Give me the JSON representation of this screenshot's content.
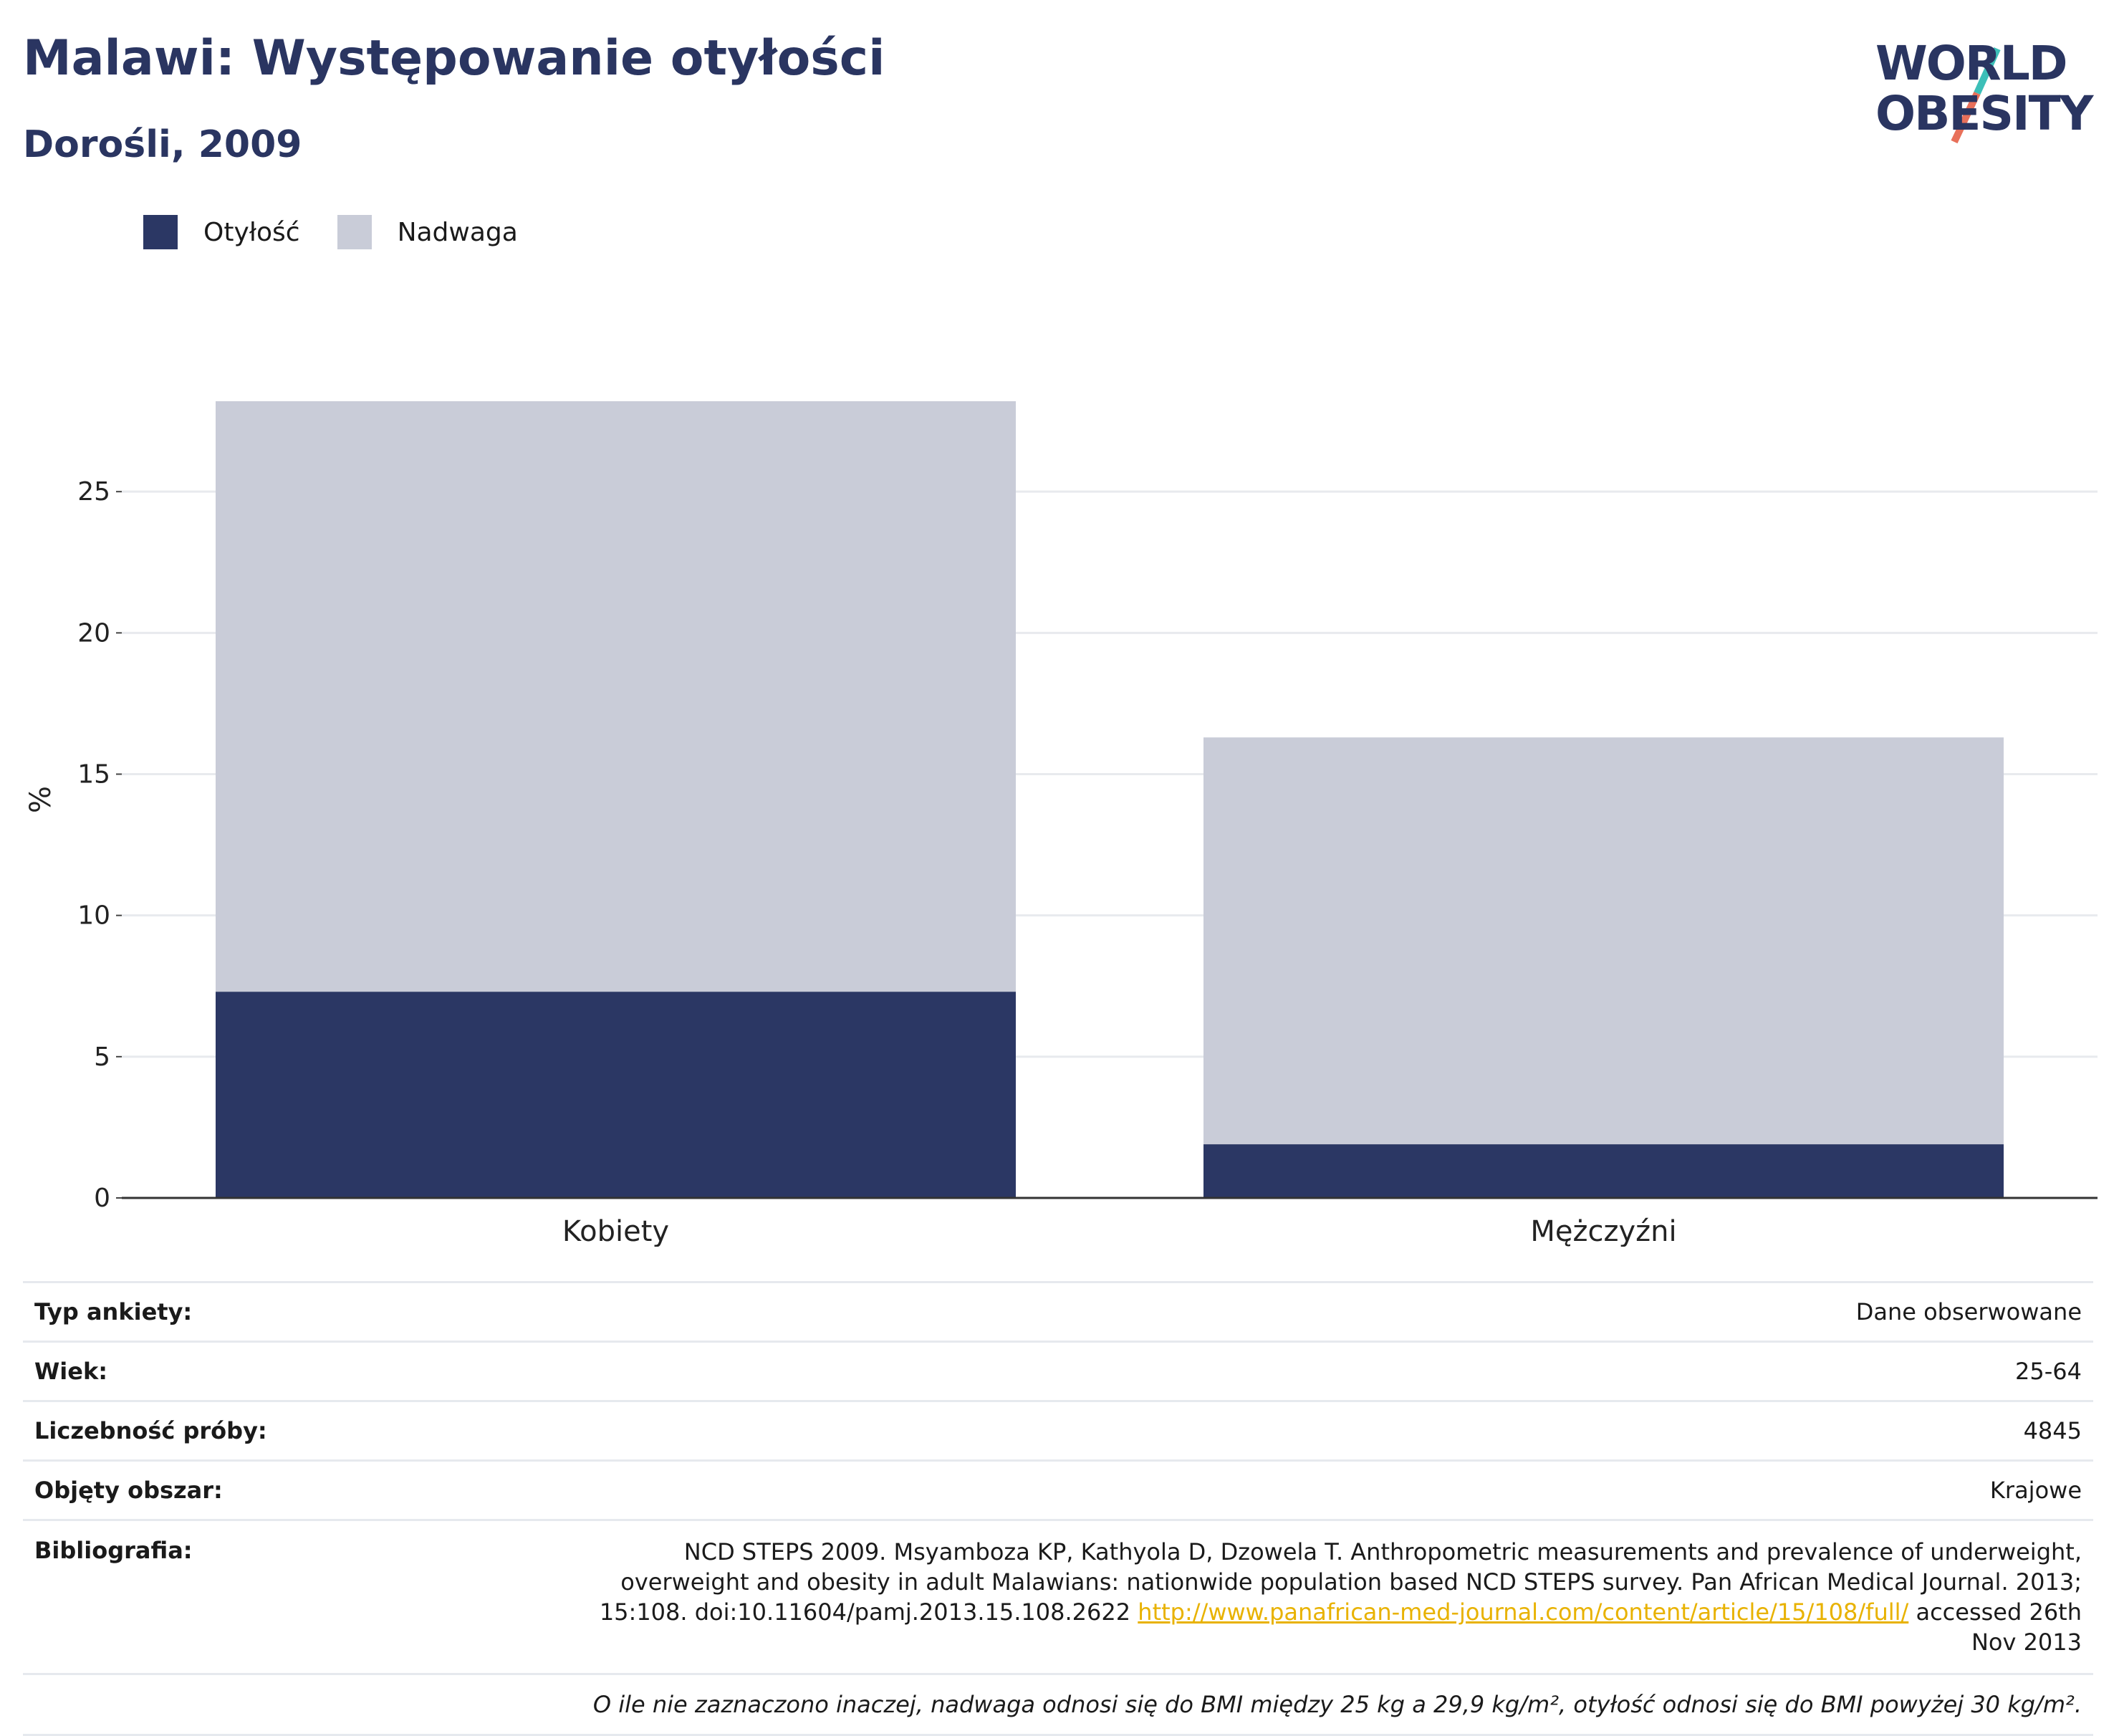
{
  "title": "Malawi: Występowanie otyłości",
  "subtitle": "Dorośli, 2009",
  "logo": {
    "line1": "WORLD",
    "line2": "OBESITY"
  },
  "legend": [
    {
      "label": "Otyłość",
      "color": "#2b3764"
    },
    {
      "label": "Nadwaga",
      "color": "#c9ccd8"
    }
  ],
  "chart_data": {
    "type": "bar",
    "stacked": true,
    "categories": [
      "Kobiety",
      "Mężczyźni"
    ],
    "series": [
      {
        "name": "Otyłość",
        "color": "#2b3764",
        "values": [
          7.3,
          1.9
        ]
      },
      {
        "name": "Nadwaga",
        "color": "#c9ccd8",
        "values": [
          20.9,
          14.4
        ]
      }
    ],
    "ylabel": "%",
    "yticks": [
      0,
      5,
      10,
      15,
      20,
      25
    ],
    "ylim": [
      0,
      28.2
    ],
    "grid": true
  },
  "meta": {
    "survey_type": {
      "label": "Typ ankiety:",
      "value": "Dane obserwowane"
    },
    "age": {
      "label": "Wiek:",
      "value": "25-64"
    },
    "sample": {
      "label": "Liczebność próby:",
      "value": "4845"
    },
    "area": {
      "label": "Objęty obszar:",
      "value": "Krajowe"
    },
    "bibliography": {
      "label": "Bibliografia:",
      "text": "NCD STEPS 2009. Msyamboza KP, Kathyola D, Dzowela T. Anthropometric measurements and prevalence of underweight, overweight and obesity in adult Malawians: nationwide population based NCD STEPS survey. Pan African Medical Journal. 2013; 15:108. doi:10.11604/pamj.2013.15.108.2622",
      "link": "http://www.panafrican-med-journal.com/content/article/15/108/full/",
      "suffix": "accessed 26th Nov 2013"
    },
    "note": "O ile nie zaznaczono inaczej, nadwaga odnosi się do BMI między 25 kg a 29,9 kg/m², otyłość odnosi się do BMI powyżej 30 kg/m²."
  }
}
